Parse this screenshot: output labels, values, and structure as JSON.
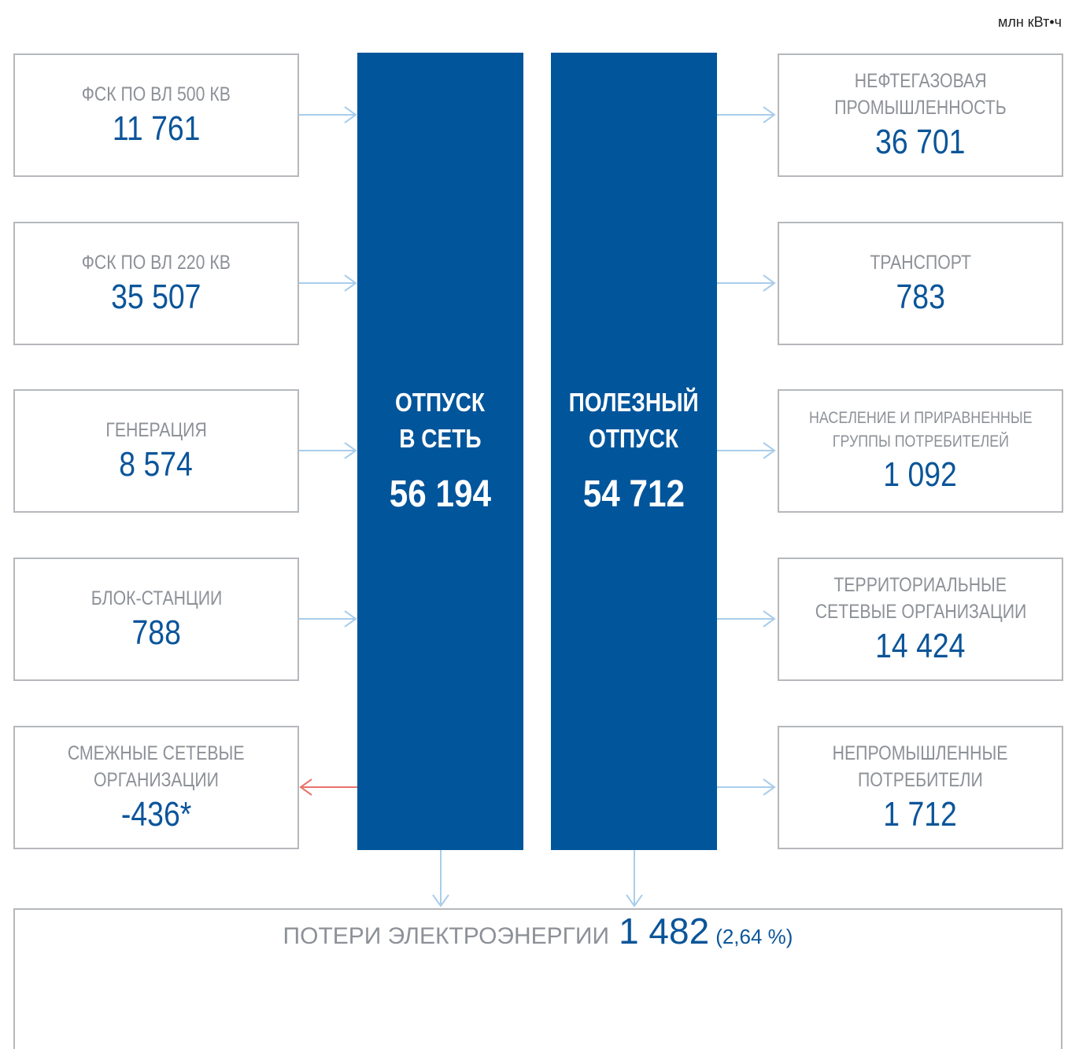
{
  "unit": "млн кВт•ч",
  "sources": [
    {
      "label": [
        "ФСК ПО ВЛ 500 КВ"
      ],
      "value": "11 761"
    },
    {
      "label": [
        "ФСК ПО ВЛ 220 КВ"
      ],
      "value": "35 507"
    },
    {
      "label": [
        "ГЕНЕРАЦИЯ"
      ],
      "value": "8 574"
    },
    {
      "label": [
        "БЛОК-СТАНЦИИ"
      ],
      "value": "788"
    },
    {
      "label": [
        "СМЕЖНЫЕ СЕТЕВЫЕ",
        "ОРГАНИЗАЦИИ"
      ],
      "value": "-436*"
    }
  ],
  "columns": [
    {
      "label": [
        "ОТПУСК",
        "В СЕТЬ"
      ],
      "value": "56 194"
    },
    {
      "label": [
        "ПОЛЕЗНЫЙ",
        "ОТПУСК"
      ],
      "value": "54 712"
    }
  ],
  "consumers": [
    {
      "label": [
        "НЕФТЕГАЗОВАЯ",
        "ПРОМЫШЛЕННОСТЬ"
      ],
      "value": "36 701"
    },
    {
      "label": [
        "ТРАНСПОРТ"
      ],
      "value": "783"
    },
    {
      "label": [
        "НАСЕЛЕНИЕ И ПРИРАВНЕННЫЕ",
        "ГРУППЫ ПОТРЕБИТЕЛЕЙ"
      ],
      "value": "1 092"
    },
    {
      "label": [
        "ТЕРРИТОРИАЛЬНЫЕ",
        "СЕТЕВЫЕ ОРГАНИЗАЦИИ"
      ],
      "value": "14 424"
    },
    {
      "label": [
        "НЕПРОМЫШЛЕННЫЕ",
        "ПОТРЕБИТЕЛИ"
      ],
      "value": "1 712"
    }
  ],
  "losses": {
    "label": "ПОТЕРИ ЭЛЕКТРОЭНЕРГИИ",
    "value": "1 482",
    "share": "(2,64 %)"
  }
}
